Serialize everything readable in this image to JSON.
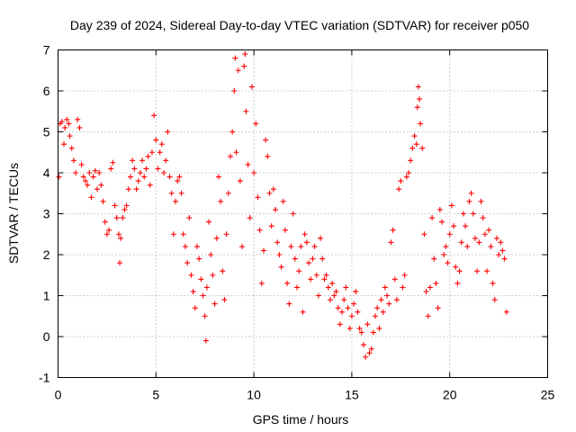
{
  "chart_data": {
    "type": "scatter",
    "title": "Day 239 of 2024, Sidereal Day-to-day VTEC variation (SDTVAR) for receiver p050",
    "xlabel": "GPS time / hours",
    "ylabel": "SDTVAR / TECUs",
    "xlim": [
      0,
      25
    ],
    "ylim": [
      -1,
      7
    ],
    "x_ticks": [
      0,
      5,
      10,
      15,
      20,
      25
    ],
    "y_ticks": [
      -1,
      0,
      1,
      2,
      3,
      4,
      5,
      6,
      7
    ],
    "x_tick_labels": [
      "0",
      "5",
      "10",
      "15",
      "20",
      "25"
    ],
    "y_tick_labels": [
      "-1",
      "0",
      "1",
      "2",
      "3",
      "4",
      "5",
      "6",
      "7"
    ],
    "grid": true,
    "marker": "+",
    "color": "#ff0000",
    "series": [
      {
        "name": "p050",
        "points": [
          [
            0.05,
            3.9
          ],
          [
            0.1,
            5.2
          ],
          [
            0.2,
            5.25
          ],
          [
            0.3,
            4.7
          ],
          [
            0.35,
            5.1
          ],
          [
            0.45,
            5.3
          ],
          [
            0.55,
            5.2
          ],
          [
            0.6,
            4.9
          ],
          [
            0.7,
            4.6
          ],
          [
            0.8,
            4.3
          ],
          [
            0.9,
            4.0
          ],
          [
            1.0,
            5.3
          ],
          [
            1.1,
            5.1
          ],
          [
            1.2,
            4.2
          ],
          [
            1.3,
            3.9
          ],
          [
            1.4,
            3.8
          ],
          [
            1.5,
            3.7
          ],
          [
            1.6,
            4.0
          ],
          [
            1.7,
            3.4
          ],
          [
            1.8,
            3.9
          ],
          [
            1.9,
            4.05
          ],
          [
            2.0,
            3.6
          ],
          [
            2.1,
            4.0
          ],
          [
            2.2,
            3.7
          ],
          [
            2.3,
            3.3
          ],
          [
            2.4,
            2.8
          ],
          [
            2.5,
            2.5
          ],
          [
            2.6,
            2.6
          ],
          [
            2.7,
            4.1
          ],
          [
            2.8,
            4.25
          ],
          [
            2.9,
            3.2
          ],
          [
            3.0,
            2.9
          ],
          [
            3.1,
            2.5
          ],
          [
            3.15,
            1.8
          ],
          [
            3.2,
            2.4
          ],
          [
            3.3,
            2.9
          ],
          [
            3.4,
            3.1
          ],
          [
            3.5,
            3.2
          ],
          [
            3.6,
            3.6
          ],
          [
            3.7,
            3.9
          ],
          [
            3.8,
            4.3
          ],
          [
            3.9,
            4.1
          ],
          [
            4.0,
            3.6
          ],
          [
            4.1,
            3.8
          ],
          [
            4.2,
            4.0
          ],
          [
            4.3,
            4.3
          ],
          [
            4.4,
            3.9
          ],
          [
            4.5,
            4.1
          ],
          [
            4.6,
            4.4
          ],
          [
            4.7,
            3.7
          ],
          [
            4.8,
            4.5
          ],
          [
            4.9,
            5.4
          ],
          [
            5.0,
            4.8
          ],
          [
            5.1,
            4.1
          ],
          [
            5.2,
            4.5
          ],
          [
            5.3,
            4.7
          ],
          [
            5.4,
            4.0
          ],
          [
            5.5,
            4.3
          ],
          [
            5.6,
            5.0
          ],
          [
            5.7,
            3.9
          ],
          [
            5.8,
            3.5
          ],
          [
            5.9,
            2.5
          ],
          [
            6.0,
            3.3
          ],
          [
            6.1,
            3.8
          ],
          [
            6.2,
            3.9
          ],
          [
            6.3,
            3.5
          ],
          [
            6.4,
            2.5
          ],
          [
            6.5,
            2.2
          ],
          [
            6.6,
            1.8
          ],
          [
            6.7,
            2.9
          ],
          [
            6.8,
            1.5
          ],
          [
            6.9,
            1.1
          ],
          [
            7.0,
            0.7
          ],
          [
            7.1,
            2.2
          ],
          [
            7.2,
            1.9
          ],
          [
            7.3,
            1.4
          ],
          [
            7.4,
            1.0
          ],
          [
            7.5,
            0.5
          ],
          [
            7.55,
            -0.1
          ],
          [
            7.6,
            1.2
          ],
          [
            7.7,
            2.8
          ],
          [
            7.8,
            2.0
          ],
          [
            7.9,
            1.5
          ],
          [
            8.0,
            0.8
          ],
          [
            8.1,
            2.4
          ],
          [
            8.2,
            3.9
          ],
          [
            8.3,
            3.3
          ],
          [
            8.4,
            1.6
          ],
          [
            8.5,
            0.9
          ],
          [
            8.6,
            2.5
          ],
          [
            8.7,
            3.5
          ],
          [
            8.8,
            4.4
          ],
          [
            8.9,
            5.0
          ],
          [
            9.0,
            6.0
          ],
          [
            9.05,
            6.8
          ],
          [
            9.1,
            4.5
          ],
          [
            9.2,
            6.5
          ],
          [
            9.3,
            3.8
          ],
          [
            9.4,
            2.2
          ],
          [
            9.5,
            6.6
          ],
          [
            9.55,
            6.9
          ],
          [
            9.6,
            5.5
          ],
          [
            9.7,
            4.2
          ],
          [
            9.8,
            2.9
          ],
          [
            9.9,
            6.1
          ],
          [
            10.0,
            4.0
          ],
          [
            10.1,
            5.2
          ],
          [
            10.2,
            3.4
          ],
          [
            10.3,
            2.6
          ],
          [
            10.4,
            1.3
          ],
          [
            10.5,
            2.1
          ],
          [
            10.6,
            4.8
          ],
          [
            10.7,
            4.4
          ],
          [
            10.8,
            3.5
          ],
          [
            10.9,
            2.7
          ],
          [
            11.0,
            3.6
          ],
          [
            11.1,
            3.1
          ],
          [
            11.2,
            2.3
          ],
          [
            11.3,
            2.0
          ],
          [
            11.4,
            1.7
          ],
          [
            11.5,
            3.3
          ],
          [
            11.6,
            2.6
          ],
          [
            11.7,
            1.3
          ],
          [
            11.8,
            0.8
          ],
          [
            11.9,
            2.2
          ],
          [
            12.0,
            3.0
          ],
          [
            12.1,
            1.9
          ],
          [
            12.2,
            1.2
          ],
          [
            12.3,
            1.6
          ],
          [
            12.4,
            2.2
          ],
          [
            12.5,
            0.6
          ],
          [
            12.6,
            2.5
          ],
          [
            12.7,
            2.3
          ],
          [
            12.8,
            1.8
          ],
          [
            12.9,
            1.4
          ],
          [
            13.0,
            1.9
          ],
          [
            13.1,
            2.2
          ],
          [
            13.2,
            1.5
          ],
          [
            13.3,
            1.0
          ],
          [
            13.4,
            2.4
          ],
          [
            13.5,
            1.9
          ],
          [
            13.6,
            1.4
          ],
          [
            13.7,
            1.5
          ],
          [
            13.8,
            1.2
          ],
          [
            13.9,
            0.9
          ],
          [
            14.0,
            1.3
          ],
          [
            14.1,
            1.0
          ],
          [
            14.2,
            1.1
          ],
          [
            14.3,
            0.7
          ],
          [
            14.4,
            0.3
          ],
          [
            14.5,
            0.6
          ],
          [
            14.6,
            0.9
          ],
          [
            14.7,
            1.2
          ],
          [
            14.8,
            0.7
          ],
          [
            14.9,
            0.2
          ],
          [
            15.0,
            0.5
          ],
          [
            15.1,
            0.8
          ],
          [
            15.2,
            1.1
          ],
          [
            15.3,
            0.6
          ],
          [
            15.4,
            0.2
          ],
          [
            15.5,
            0.1
          ],
          [
            15.6,
            -0.2
          ],
          [
            15.7,
            -0.5
          ],
          [
            15.8,
            0.3
          ],
          [
            15.9,
            -0.4
          ],
          [
            16.0,
            -0.3
          ],
          [
            16.1,
            0.1
          ],
          [
            16.2,
            0.5
          ],
          [
            16.3,
            0.7
          ],
          [
            16.4,
            0.2
          ],
          [
            16.5,
            0.9
          ],
          [
            16.6,
            0.6
          ],
          [
            16.7,
            1.2
          ],
          [
            16.8,
            1.0
          ],
          [
            16.9,
            0.8
          ],
          [
            17.0,
            2.3
          ],
          [
            17.1,
            2.6
          ],
          [
            17.2,
            1.4
          ],
          [
            17.3,
            0.9
          ],
          [
            17.4,
            3.6
          ],
          [
            17.5,
            3.8
          ],
          [
            17.6,
            1.2
          ],
          [
            17.7,
            1.5
          ],
          [
            17.8,
            3.9
          ],
          [
            17.9,
            4.0
          ],
          [
            18.0,
            4.3
          ],
          [
            18.1,
            4.6
          ],
          [
            18.2,
            4.9
          ],
          [
            18.3,
            4.7
          ],
          [
            18.35,
            5.6
          ],
          [
            18.4,
            6.1
          ],
          [
            18.45,
            5.8
          ],
          [
            18.5,
            5.2
          ],
          [
            18.6,
            4.6
          ],
          [
            18.7,
            2.5
          ],
          [
            18.8,
            1.1
          ],
          [
            18.9,
            0.5
          ],
          [
            19.0,
            1.2
          ],
          [
            19.1,
            2.9
          ],
          [
            19.2,
            1.9
          ],
          [
            19.3,
            1.3
          ],
          [
            19.4,
            0.7
          ],
          [
            19.5,
            3.1
          ],
          [
            19.6,
            2.8
          ],
          [
            19.7,
            2.0
          ],
          [
            19.8,
            2.2
          ],
          [
            19.9,
            1.8
          ],
          [
            20.0,
            2.5
          ],
          [
            20.1,
            3.2
          ],
          [
            20.2,
            2.7
          ],
          [
            20.3,
            1.7
          ],
          [
            20.4,
            1.3
          ],
          [
            20.5,
            1.6
          ],
          [
            20.6,
            2.3
          ],
          [
            20.7,
            3.0
          ],
          [
            20.8,
            2.7
          ],
          [
            20.9,
            2.2
          ],
          [
            21.0,
            3.3
          ],
          [
            21.1,
            3.5
          ],
          [
            21.2,
            3.0
          ],
          [
            21.3,
            2.4
          ],
          [
            21.4,
            1.6
          ],
          [
            21.5,
            2.3
          ],
          [
            21.6,
            3.3
          ],
          [
            21.7,
            2.9
          ],
          [
            21.8,
            2.5
          ],
          [
            21.9,
            1.6
          ],
          [
            22.0,
            2.6
          ],
          [
            22.1,
            2.2
          ],
          [
            22.2,
            1.3
          ],
          [
            22.3,
            0.9
          ],
          [
            22.4,
            2.4
          ],
          [
            22.5,
            2.0
          ],
          [
            22.6,
            2.3
          ],
          [
            22.7,
            2.1
          ],
          [
            22.8,
            1.9
          ],
          [
            22.9,
            0.6
          ]
        ]
      }
    ]
  }
}
